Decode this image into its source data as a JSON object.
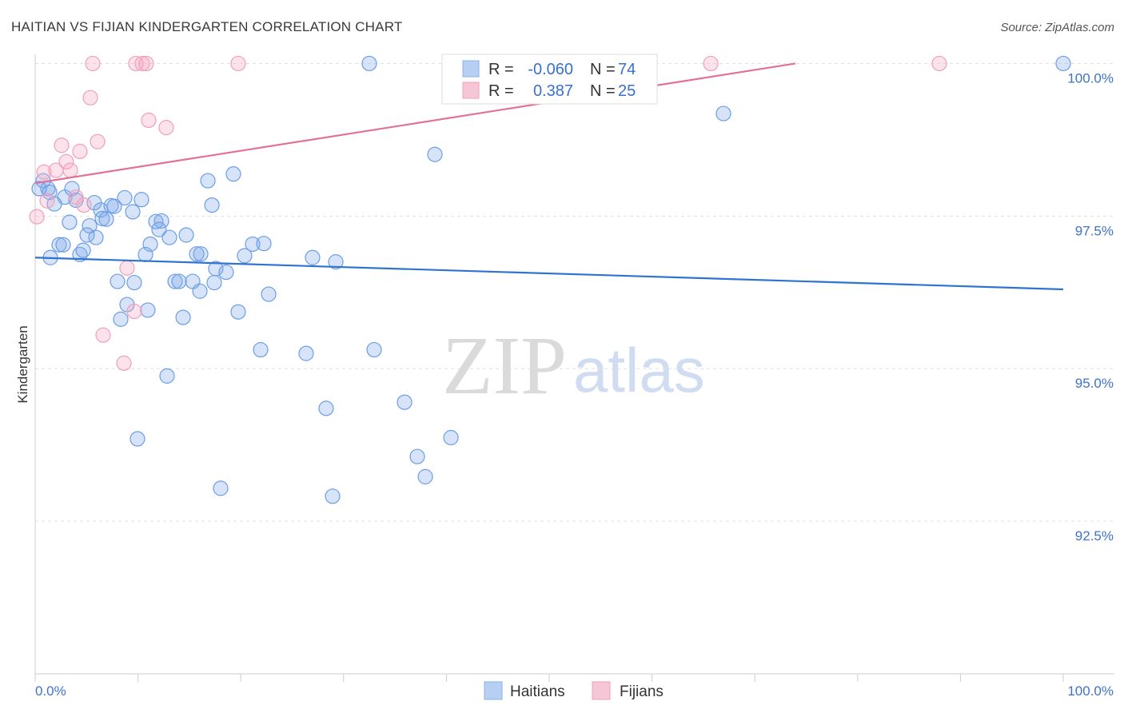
{
  "source": "Source: ZipAtlas.com",
  "watermark": {
    "zip": "ZIP",
    "atlas": "atlas"
  },
  "legend_top": [
    {
      "r_label": "R = ",
      "r": "-0.060",
      "n_label": "N = ",
      "n": "74",
      "color": "#b7cff3",
      "border": "#8ab0ea"
    },
    {
      "r_label": "R = ",
      "r": "0.387",
      "n_label": "N = ",
      "n": "25",
      "color": "#f7c6d6",
      "border": "#efa0bb"
    }
  ],
  "chart_data": {
    "type": "scatter",
    "title": "HAITIAN VS FIJIAN KINDERGARTEN CORRELATION CHART",
    "xlabel": "",
    "ylabel": "Kindergarten",
    "xlim": [
      0,
      100
    ],
    "ylim": [
      90,
      100.15
    ],
    "grid": true,
    "x_minor_ticks": [
      0,
      10,
      20,
      30,
      40,
      50,
      60,
      70,
      80,
      90,
      100
    ],
    "x_tick_labels": [
      {
        "value": 0,
        "label": "0.0%"
      },
      {
        "value": 100,
        "label": "100.0%"
      }
    ],
    "y_ticks": [
      {
        "value": 100,
        "label": "100.0%"
      },
      {
        "value": 97.5,
        "label": "97.5%"
      },
      {
        "value": 95,
        "label": "95.0%"
      },
      {
        "value": 92.5,
        "label": "92.5%"
      }
    ],
    "legend": "bottom-center",
    "series": [
      {
        "name": "Haitians",
        "stroke": "#6b9ee6",
        "fill": "rgba(130,170,235,0.33)",
        "trend_color": "#2f73d1",
        "points": [
          [
            0.78,
            98.08
          ],
          [
            1.24,
            97.95
          ],
          [
            1.4,
            97.89
          ],
          [
            1.87,
            97.7
          ],
          [
            2.88,
            97.81
          ],
          [
            3.58,
            97.95
          ],
          [
            3.97,
            97.76
          ],
          [
            3.34,
            97.4
          ],
          [
            1.48,
            96.82
          ],
          [
            2.33,
            97.03
          ],
          [
            2.72,
            97.03
          ],
          [
            4.35,
            96.87
          ],
          [
            4.67,
            96.94
          ],
          [
            5.29,
            97.34
          ],
          [
            5.75,
            97.72
          ],
          [
            6.38,
            97.6
          ],
          [
            6.53,
            97.46
          ],
          [
            6.92,
            97.45
          ],
          [
            7.39,
            97.67
          ],
          [
            7.7,
            97.66
          ],
          [
            8.71,
            97.8
          ],
          [
            9.49,
            97.57
          ],
          [
            10.34,
            97.77
          ],
          [
            11.74,
            97.41
          ],
          [
            12.29,
            97.42
          ],
          [
            12.05,
            97.28
          ],
          [
            11.2,
            97.04
          ],
          [
            10.73,
            96.87
          ],
          [
            13.06,
            97.15
          ],
          [
            14.7,
            97.19
          ],
          [
            5.91,
            97.15
          ],
          [
            5.05,
            97.19
          ],
          [
            8.01,
            96.43
          ],
          [
            9.64,
            96.41
          ],
          [
            8.94,
            96.05
          ],
          [
            8.32,
            95.81
          ],
          [
            10.96,
            95.96
          ],
          [
            14.39,
            95.84
          ],
          [
            13.61,
            96.43
          ],
          [
            14.0,
            96.43
          ],
          [
            15.32,
            96.43
          ],
          [
            16.02,
            96.27
          ],
          [
            15.71,
            96.88
          ],
          [
            16.1,
            96.88
          ],
          [
            17.57,
            96.64
          ],
          [
            18.58,
            96.58
          ],
          [
            17.42,
            96.41
          ],
          [
            19.75,
            95.93
          ],
          [
            20.37,
            96.85
          ],
          [
            21.15,
            97.04
          ],
          [
            22.24,
            97.05
          ],
          [
            22.71,
            96.22
          ],
          [
            21.93,
            95.31
          ],
          [
            16.8,
            98.08
          ],
          [
            17.19,
            97.68
          ],
          [
            19.28,
            98.19
          ],
          [
            12.83,
            94.88
          ],
          [
            9.95,
            93.85
          ],
          [
            18.04,
            93.04
          ],
          [
            26.36,
            95.25
          ],
          [
            26.98,
            96.82
          ],
          [
            29.24,
            96.75
          ],
          [
            28.3,
            94.35
          ],
          [
            28.93,
            92.91
          ],
          [
            32.97,
            95.31
          ],
          [
            35.93,
            94.45
          ],
          [
            37.17,
            93.56
          ],
          [
            37.95,
            93.23
          ],
          [
            40.44,
            93.87
          ],
          [
            32.5,
            100.0
          ],
          [
            38.88,
            98.51
          ],
          [
            66.95,
            99.18
          ],
          [
            100.0,
            100.0
          ],
          [
            0.39,
            97.95
          ]
        ],
        "trend": {
          "x": [
            0,
            100
          ],
          "y": [
            96.82,
            96.3
          ]
        }
      },
      {
        "name": "Fijians",
        "stroke": "#ee9fbc",
        "fill": "rgba(245,170,195,0.33)",
        "trend_color": "#e2719a",
        "points": [
          [
            5.6,
            100
          ],
          [
            9.8,
            100
          ],
          [
            10.42,
            100
          ],
          [
            10.81,
            100
          ],
          [
            19.75,
            100
          ],
          [
            65.71,
            100
          ],
          [
            87.95,
            100
          ],
          [
            5.37,
            99.44
          ],
          [
            11.04,
            99.07
          ],
          [
            12.75,
            98.95
          ],
          [
            6.07,
            98.72
          ],
          [
            2.57,
            98.66
          ],
          [
            4.35,
            98.56
          ],
          [
            3.03,
            98.39
          ],
          [
            0.86,
            98.22
          ],
          [
            3.42,
            98.25
          ],
          [
            2.02,
            98.25
          ],
          [
            3.97,
            97.81
          ],
          [
            1.17,
            97.75
          ],
          [
            4.74,
            97.68
          ],
          [
            0.16,
            97.49
          ],
          [
            8.94,
            96.65
          ],
          [
            9.64,
            95.94
          ],
          [
            6.61,
            95.55
          ],
          [
            8.63,
            95.09
          ]
        ],
        "trend": {
          "x": [
            0,
            73.95
          ],
          "y": [
            98.04,
            100
          ]
        }
      }
    ]
  }
}
